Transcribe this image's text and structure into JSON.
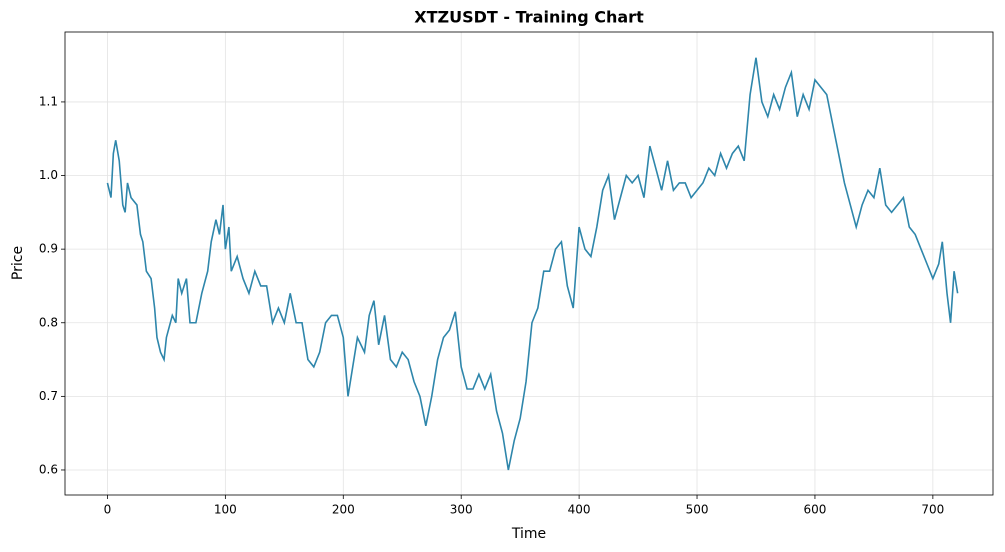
{
  "chart_data": {
    "type": "line",
    "title": "XTZUSDT - Training Chart",
    "x_label": "Time",
    "y_label": "Price",
    "xlim": [
      -36,
      751
    ],
    "xticks": [
      0,
      100,
      200,
      300,
      400,
      500,
      600,
      700
    ],
    "ylim": [
      0.566,
      1.195
    ],
    "yticks": [
      0.6,
      0.7,
      0.8,
      0.9,
      {
        "value": 1,
        "label": "1.0"
      },
      1.1
    ],
    "grid": true,
    "x": [
      0,
      3,
      5,
      7,
      10,
      13,
      15,
      17,
      20,
      25,
      28,
      30,
      33,
      37,
      40,
      42,
      45,
      48,
      50,
      55,
      58,
      60,
      63,
      67,
      70,
      75,
      80,
      85,
      88,
      92,
      95,
      98,
      100,
      103,
      105,
      110,
      115,
      120,
      125,
      130,
      135,
      140,
      145,
      150,
      155,
      160,
      165,
      170,
      175,
      180,
      185,
      190,
      195,
      200,
      204,
      208,
      212,
      218,
      222,
      226,
      230,
      235,
      240,
      245,
      250,
      255,
      260,
      265,
      270,
      275,
      280,
      285,
      290,
      295,
      300,
      305,
      310,
      315,
      320,
      325,
      330,
      335,
      340,
      345,
      350,
      355,
      360,
      365,
      370,
      375,
      380,
      385,
      390,
      395,
      400,
      405,
      410,
      415,
      420,
      425,
      430,
      435,
      440,
      445,
      450,
      455,
      460,
      465,
      470,
      475,
      480,
      485,
      490,
      495,
      500,
      505,
      510,
      515,
      520,
      525,
      530,
      535,
      540,
      545,
      550,
      555,
      560,
      565,
      570,
      575,
      580,
      585,
      590,
      595,
      600,
      605,
      610,
      615,
      620,
      625,
      630,
      635,
      640,
      645,
      650,
      655,
      660,
      665,
      670,
      675,
      680,
      685,
      690,
      695,
      700,
      705,
      708,
      712,
      715,
      718,
      721
    ],
    "series": [
      {
        "name": "XTZUSDT",
        "color": "#2e86ab",
        "values": [
          0.99,
          0.97,
          1.03,
          1.048,
          1.02,
          0.96,
          0.95,
          0.99,
          0.97,
          0.96,
          0.92,
          0.91,
          0.87,
          0.86,
          0.82,
          0.78,
          0.76,
          0.75,
          0.78,
          0.81,
          0.8,
          0.86,
          0.84,
          0.86,
          0.8,
          0.8,
          0.84,
          0.87,
          0.91,
          0.94,
          0.92,
          0.96,
          0.9,
          0.93,
          0.87,
          0.89,
          0.86,
          0.84,
          0.87,
          0.85,
          0.85,
          0.8,
          0.82,
          0.8,
          0.84,
          0.8,
          0.8,
          0.75,
          0.74,
          0.76,
          0.8,
          0.81,
          0.81,
          0.78,
          0.7,
          0.74,
          0.78,
          0.76,
          0.81,
          0.83,
          0.77,
          0.81,
          0.75,
          0.74,
          0.76,
          0.75,
          0.72,
          0.7,
          0.66,
          0.7,
          0.75,
          0.78,
          0.79,
          0.815,
          0.74,
          0.71,
          0.71,
          0.73,
          0.71,
          0.73,
          0.68,
          0.65,
          0.6,
          0.64,
          0.67,
          0.72,
          0.8,
          0.82,
          0.87,
          0.87,
          0.9,
          0.91,
          0.85,
          0.82,
          0.93,
          0.9,
          0.89,
          0.93,
          0.98,
          1.0,
          0.94,
          0.97,
          1.0,
          0.99,
          1.0,
          0.97,
          1.04,
          1.01,
          0.98,
          1.02,
          0.98,
          0.99,
          0.99,
          0.97,
          0.98,
          0.99,
          1.01,
          1.0,
          1.03,
          1.01,
          1.03,
          1.04,
          1.02,
          1.11,
          1.16,
          1.1,
          1.08,
          1.11,
          1.09,
          1.12,
          1.14,
          1.08,
          1.11,
          1.09,
          1.13,
          1.12,
          1.11,
          1.07,
          1.03,
          0.99,
          0.96,
          0.93,
          0.96,
          0.98,
          0.97,
          1.01,
          0.96,
          0.95,
          0.96,
          0.97,
          0.93,
          0.92,
          0.9,
          0.88,
          0.86,
          0.88,
          0.91,
          0.84,
          0.8,
          0.87,
          0.84
        ]
      }
    ]
  }
}
